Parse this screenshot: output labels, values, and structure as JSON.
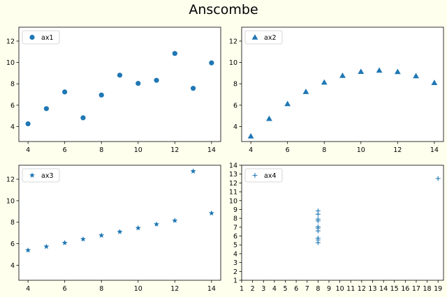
{
  "figure_title": "Anscombe",
  "colors": {
    "marker": "#1f77b4",
    "background": "#ffffee",
    "axes_background": "#ffffff"
  },
  "chart_data": [
    {
      "type": "scatter",
      "marker": "circle",
      "legend": "ax1",
      "legend_position": "top-left",
      "grid": false,
      "x": [
        10,
        8,
        13,
        9,
        11,
        14,
        6,
        4,
        12,
        7,
        5
      ],
      "y": [
        8.04,
        6.95,
        7.58,
        8.81,
        8.33,
        9.96,
        7.24,
        4.26,
        10.84,
        4.82,
        5.68
      ],
      "xlim": [
        3.5,
        14.5
      ],
      "ylim": [
        2.6,
        13.3
      ],
      "xticks": [
        4,
        6,
        8,
        10,
        12,
        14
      ],
      "yticks": [
        4,
        6,
        8,
        10,
        12
      ]
    },
    {
      "type": "scatter",
      "marker": "triangle",
      "legend": "ax2",
      "legend_position": "top-left",
      "grid": false,
      "x": [
        10,
        8,
        13,
        9,
        11,
        14,
        6,
        4,
        12,
        7,
        5
      ],
      "y": [
        9.14,
        8.14,
        8.74,
        8.77,
        9.26,
        8.1,
        6.13,
        3.1,
        9.13,
        7.26,
        4.74
      ],
      "xlim": [
        3.5,
        14.5
      ],
      "ylim": [
        2.6,
        13.3
      ],
      "xticks": [
        4,
        6,
        8,
        10,
        12,
        14
      ],
      "yticks": [
        4,
        6,
        8,
        10,
        12
      ]
    },
    {
      "type": "scatter",
      "marker": "star",
      "legend": "ax3",
      "legend_position": "top-left",
      "grid": false,
      "x": [
        10,
        8,
        13,
        9,
        11,
        14,
        6,
        4,
        12,
        7,
        5
      ],
      "y": [
        7.46,
        6.77,
        12.74,
        7.11,
        7.81,
        8.84,
        6.08,
        5.39,
        8.15,
        6.42,
        5.73
      ],
      "xlim": [
        3.5,
        14.5
      ],
      "ylim": [
        2.6,
        13.3
      ],
      "xticks": [
        4,
        6,
        8,
        10,
        12,
        14
      ],
      "yticks": [
        4,
        6,
        8,
        10,
        12
      ]
    },
    {
      "type": "scatter",
      "marker": "plus",
      "legend": "ax4",
      "legend_position": "top-left",
      "grid": false,
      "x": [
        8,
        8,
        8,
        8,
        8,
        8,
        8,
        19,
        8,
        8,
        8
      ],
      "y": [
        6.58,
        5.76,
        7.71,
        8.84,
        8.47,
        7.04,
        5.25,
        12.5,
        5.56,
        7.91,
        6.89
      ],
      "xlim": [
        1,
        19.5
      ],
      "ylim": [
        1,
        14
      ],
      "xticks": [
        1,
        2,
        3,
        4,
        5,
        6,
        7,
        8,
        9,
        10,
        11,
        12,
        13,
        14,
        15,
        16,
        17,
        18,
        19
      ],
      "yticks": [
        1,
        2,
        3,
        4,
        5,
        6,
        7,
        8,
        9,
        10,
        11,
        12,
        13,
        14
      ]
    }
  ]
}
